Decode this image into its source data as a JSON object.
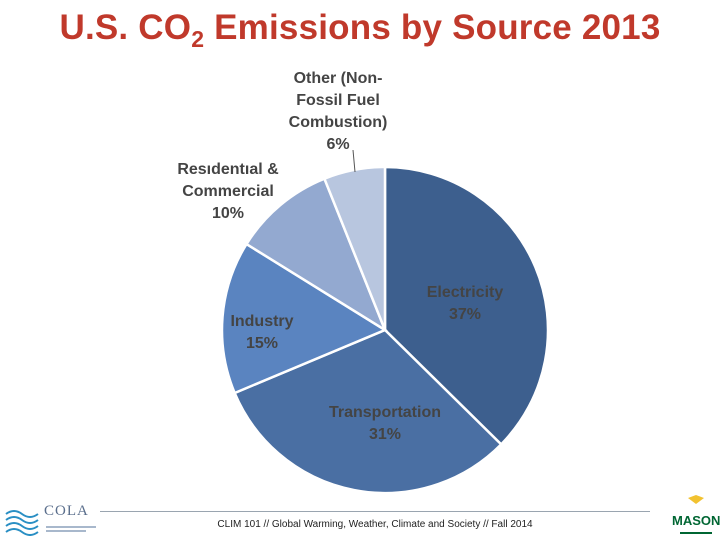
{
  "title_main": "U.S. CO",
  "title_sub": "2",
  "title_rest": " Emissions by Source 2013",
  "chart_data": {
    "type": "pie",
    "title": "U.S. CO2 Emissions by Source 2013",
    "unit": "%",
    "start": "12 o'clock, clockwise",
    "slices": [
      {
        "name": "Electricity",
        "value": 37,
        "label_lines": [
          "Electricity",
          "37%"
        ],
        "color": "#3d5f8e"
      },
      {
        "name": "Transportation",
        "value": 31,
        "label_lines": [
          "Transportation",
          "31%"
        ],
        "color": "#4a6fa3"
      },
      {
        "name": "Industry",
        "value": 15,
        "label_lines": [
          "Industry",
          "15%"
        ],
        "color": "#5a84c0"
      },
      {
        "name": "Residential & Commercial",
        "value": 10,
        "label_lines": [
          "Resıdentıal &",
          "Commercial",
          "10%"
        ],
        "color": "#93a9d0"
      },
      {
        "name": "Other (Non-Fossil Fuel Combustion)",
        "value": 6,
        "label_lines": [
          "Other (Non-",
          "Fossil Fuel",
          "Combustion)",
          "6%"
        ],
        "color": "#b8c6df"
      }
    ]
  },
  "footer": {
    "course": "CLIM 101 // Global Warming, Weather, Climate and Society // Fall 2014",
    "left_logo": "COLA",
    "right_logo": "MASON"
  }
}
